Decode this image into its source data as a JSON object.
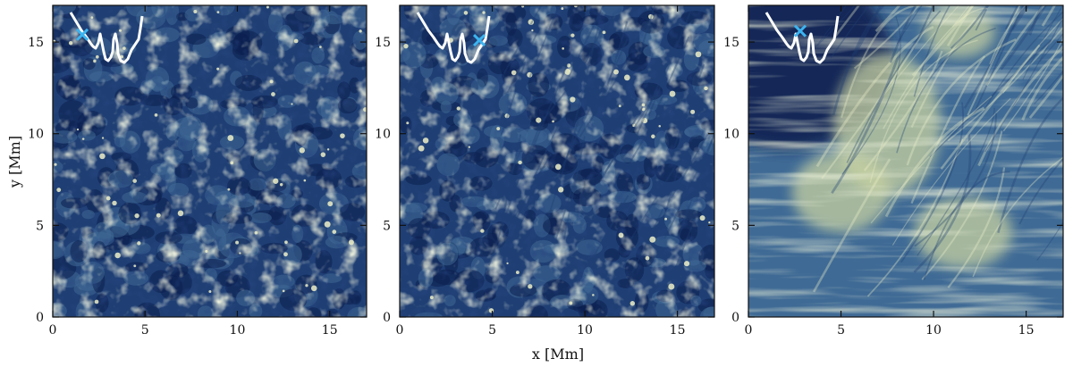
{
  "figure": {
    "xlabel": "x [Mm]",
    "ylabel": "y [Mm]",
    "x_range": [
      0,
      17
    ],
    "y_range": [
      0,
      17
    ],
    "x_ticks": [
      0,
      5,
      10,
      15
    ],
    "y_ticks": [
      0,
      5,
      10,
      15
    ],
    "colormap": [
      "#0b1f4e",
      "#1f3f74",
      "#3f6a95",
      "#88a9ad",
      "#c8d2a2",
      "#eef0c8"
    ],
    "inset_profile_color": "#ffffff",
    "marker_color": "#3cb4f0",
    "panels": [
      {
        "name": "left",
        "marker_x": 1.6,
        "marker_y": 15.4,
        "texture": "granulation"
      },
      {
        "name": "middle",
        "marker_x": 4.3,
        "marker_y": 15.1,
        "texture": "granulation-fibrils"
      },
      {
        "name": "right",
        "marker_x": 2.8,
        "marker_y": 15.6,
        "texture": "chromospheric-fibrils"
      }
    ]
  }
}
